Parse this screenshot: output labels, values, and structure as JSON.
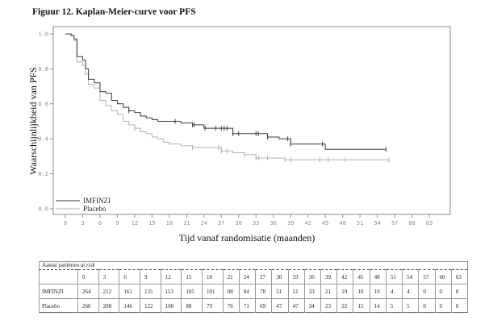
{
  "figure_title": "Figuur 12. Kaplan-Meier-curve voor PFS",
  "chart_data": {
    "type": "line",
    "subtype": "kaplan-meier-step",
    "title": "Figuur 12. Kaplan-Meier-curve voor PFS",
    "xlabel": "Tijd vanaf randomisatie (maanden)",
    "ylabel": "Waarschijnlijkheid van PFS",
    "xlim": [
      0,
      63
    ],
    "ylim": [
      0,
      1
    ],
    "xticks": [
      "0",
      "3",
      "6",
      "9",
      "12",
      "15",
      "18",
      "21",
      "24",
      "27",
      "30",
      "33",
      "36",
      "39",
      "42",
      "45",
      "48",
      "51",
      "54",
      "57",
      "60",
      "63"
    ],
    "yticks": [
      "0.0",
      "0.2",
      "0.4",
      "0.6",
      "0.8",
      "1.0"
    ],
    "grid": false,
    "legend_position": "bottom-left",
    "series": [
      {
        "name": "IMFINZI",
        "color": "#3a3a3a",
        "x": [
          0,
          1,
          1.5,
          2,
          3,
          3.5,
          4,
          5,
          6,
          7,
          8,
          9,
          10,
          11,
          12,
          13,
          14,
          15,
          16,
          18,
          20,
          22,
          23,
          24,
          26,
          28,
          29,
          31,
          33,
          35,
          37,
          39,
          42,
          45,
          50,
          55.5
        ],
        "y": [
          1.0,
          0.99,
          0.97,
          0.87,
          0.85,
          0.8,
          0.74,
          0.72,
          0.67,
          0.66,
          0.62,
          0.6,
          0.58,
          0.56,
          0.55,
          0.53,
          0.52,
          0.51,
          0.5,
          0.5,
          0.49,
          0.48,
          0.48,
          0.46,
          0.46,
          0.46,
          0.43,
          0.43,
          0.43,
          0.41,
          0.4,
          0.37,
          0.37,
          0.34,
          0.34,
          0.34
        ],
        "censor_x": [
          11,
          19,
          22,
          22.3,
          24.2,
          26,
          27,
          27.5,
          28,
          29,
          30,
          33,
          33.4,
          35,
          38.5,
          39,
          44.5,
          55.5
        ]
      },
      {
        "name": "Placebo",
        "color": "#b0b0b0",
        "x": [
          0,
          1,
          1.5,
          2,
          3,
          3.5,
          4,
          5,
          6,
          7,
          8,
          9,
          10,
          11,
          12,
          13,
          14,
          15,
          16,
          17,
          18,
          20,
          21,
          22,
          24,
          27,
          29,
          31,
          33,
          35,
          38,
          45,
          50,
          56
        ],
        "y": [
          1.0,
          0.99,
          0.96,
          0.84,
          0.82,
          0.77,
          0.71,
          0.69,
          0.62,
          0.59,
          0.56,
          0.54,
          0.5,
          0.48,
          0.46,
          0.44,
          0.43,
          0.41,
          0.4,
          0.38,
          0.37,
          0.36,
          0.36,
          0.35,
          0.35,
          0.33,
          0.32,
          0.31,
          0.29,
          0.29,
          0.28,
          0.28,
          0.28,
          0.28
        ],
        "censor_x": [
          12,
          22,
          26.5,
          27,
          28,
          31,
          33,
          33.5,
          35,
          38,
          39,
          44,
          45.5,
          48.5,
          56
        ]
      }
    ],
    "risk_table": {
      "caption_plain": "Aantal patiënten ",
      "caption_italic": "at risk",
      "timepoints": [
        "0",
        "3",
        "6",
        "9",
        "12",
        "15",
        "18",
        "21",
        "24",
        "27",
        "30",
        "33",
        "36",
        "39",
        "42",
        "45",
        "48",
        "51",
        "54",
        "57",
        "60",
        "63"
      ],
      "rows": [
        {
          "label": "IMFINZI",
          "values": [
            "264",
            "212",
            "161",
            "135",
            "113",
            "105",
            "101",
            "98",
            "84",
            "78",
            "51",
            "51",
            "33",
            "21",
            "19",
            "10",
            "10",
            "4",
            "4",
            "0",
            "0",
            "0"
          ]
        },
        {
          "label": "Placebo",
          "values": [
            "266",
            "208",
            "146",
            "122",
            "100",
            "88",
            "79",
            "76",
            "71",
            "69",
            "47",
            "47",
            "34",
            "23",
            "22",
            "15",
            "14",
            "5",
            "5",
            "0",
            "0",
            "0"
          ]
        }
      ]
    }
  }
}
